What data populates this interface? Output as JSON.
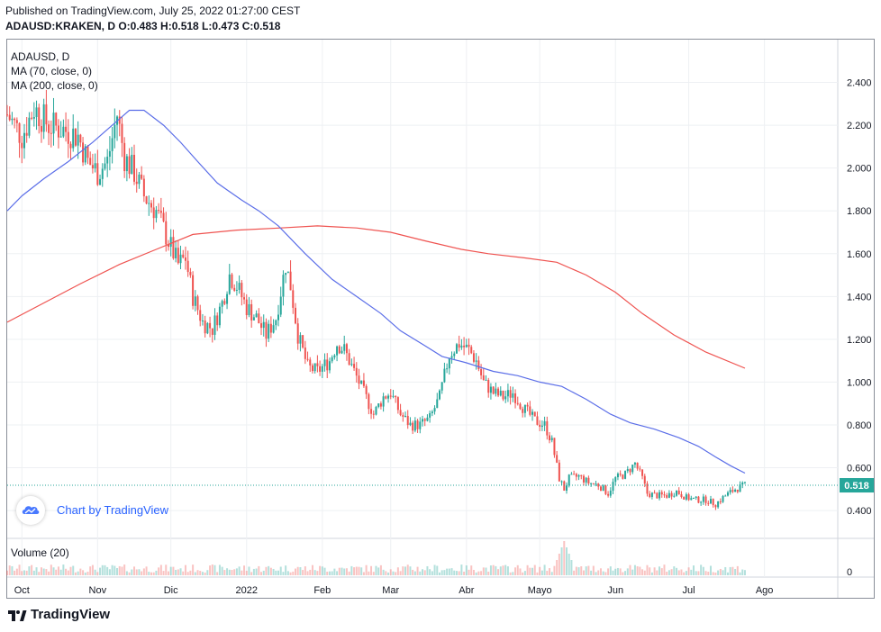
{
  "header": {
    "published": "Published on TradingView.com, July 25, 2022 01:27:00 CEST",
    "symbol_line": "ADAUSD:KRAKEN, D O:0.483 H:0.518 L:0.473 C:0.518"
  },
  "legend": {
    "symbol": "ADAUSD, D",
    "ma70": "MA (70, close, 0)",
    "ma200": "MA (200, close, 0)",
    "volume": "Volume (20)"
  },
  "badge": {
    "text": "Chart by TradingView"
  },
  "footer": {
    "brand": "TradingView"
  },
  "colors": {
    "up": "#26a69a",
    "down": "#ef5350",
    "ma70": "#5b6ee8",
    "ma200": "#ef5350",
    "last_price_bg": "#26a69a",
    "watermark": "#2962ff"
  },
  "chart_data": {
    "type": "candlestick",
    "title": "ADAUSD, D",
    "price_range": [
      0.27,
      2.6
    ],
    "price_ticks": [
      "2.400",
      "2.200",
      "2.000",
      "1.800",
      "1.600",
      "1.400",
      "1.200",
      "1.000",
      "0.800",
      "0.600",
      "0.400"
    ],
    "x_ticks": [
      {
        "label": "Oct",
        "date": "2021-10-01"
      },
      {
        "label": "Nov",
        "date": "2021-11-01"
      },
      {
        "label": "Dic",
        "date": "2021-12-01"
      },
      {
        "label": "2022",
        "date": "2022-01-01"
      },
      {
        "label": "Feb",
        "date": "2022-02-01"
      },
      {
        "label": "Mar",
        "date": "2022-03-01"
      },
      {
        "label": "Abr",
        "date": "2022-04-01"
      },
      {
        "label": "Mayo",
        "date": "2022-05-01"
      },
      {
        "label": "Jun",
        "date": "2022-06-01"
      },
      {
        "label": "Jul",
        "date": "2022-07-01"
      },
      {
        "label": "Ago",
        "date": "2022-08-01"
      }
    ],
    "x_range": [
      "2021-09-25",
      "2022-08-31"
    ],
    "last_price": "0.518",
    "volume_tick": "0",
    "close_points": [
      [
        "2021-09-25",
        2.25
      ],
      [
        "2021-10-01",
        2.15
      ],
      [
        "2021-10-06",
        2.28
      ],
      [
        "2021-10-12",
        2.2
      ],
      [
        "2021-10-18",
        2.18
      ],
      [
        "2021-10-24",
        2.15
      ],
      [
        "2021-10-28",
        2.03
      ],
      [
        "2021-11-01",
        1.98
      ],
      [
        "2021-11-05",
        2.03
      ],
      [
        "2021-11-09",
        2.25
      ],
      [
        "2021-11-12",
        2.05
      ],
      [
        "2021-11-16",
        1.98
      ],
      [
        "2021-11-20",
        1.87
      ],
      [
        "2021-11-25",
        1.8
      ],
      [
        "2021-12-01",
        1.63
      ],
      [
        "2021-12-04",
        1.55
      ],
      [
        "2021-12-07",
        1.58
      ],
      [
        "2021-12-10",
        1.4
      ],
      [
        "2021-12-14",
        1.28
      ],
      [
        "2021-12-18",
        1.25
      ],
      [
        "2021-12-22",
        1.37
      ],
      [
        "2021-12-25",
        1.5
      ],
      [
        "2021-12-28",
        1.45
      ],
      [
        "2022-01-01",
        1.35
      ],
      [
        "2022-01-05",
        1.3
      ],
      [
        "2022-01-09",
        1.22
      ],
      [
        "2022-01-13",
        1.3
      ],
      [
        "2022-01-17",
        1.55
      ],
      [
        "2022-01-19",
        1.45
      ],
      [
        "2022-01-22",
        1.22
      ],
      [
        "2022-01-26",
        1.07
      ],
      [
        "2022-01-30",
        1.05
      ],
      [
        "2022-02-04",
        1.1
      ],
      [
        "2022-02-07",
        1.18
      ],
      [
        "2022-02-10",
        1.15
      ],
      [
        "2022-02-14",
        1.05
      ],
      [
        "2022-02-18",
        0.95
      ],
      [
        "2022-02-22",
        0.85
      ],
      [
        "2022-02-26",
        0.93
      ],
      [
        "2022-03-01",
        0.95
      ],
      [
        "2022-03-05",
        0.85
      ],
      [
        "2022-03-09",
        0.8
      ],
      [
        "2022-03-13",
        0.8
      ],
      [
        "2022-03-17",
        0.83
      ],
      [
        "2022-03-21",
        0.93
      ],
      [
        "2022-03-25",
        1.13
      ],
      [
        "2022-03-29",
        1.18
      ],
      [
        "2022-04-02",
        1.15
      ],
      [
        "2022-04-05",
        1.1
      ],
      [
        "2022-04-08",
        1.0
      ],
      [
        "2022-04-12",
        0.95
      ],
      [
        "2022-04-16",
        0.93
      ],
      [
        "2022-04-20",
        0.95
      ],
      [
        "2022-04-25",
        0.87
      ],
      [
        "2022-04-29",
        0.82
      ],
      [
        "2022-05-03",
        0.8
      ],
      [
        "2022-05-06",
        0.72
      ],
      [
        "2022-05-09",
        0.55
      ],
      [
        "2022-05-11",
        0.5
      ],
      [
        "2022-05-13",
        0.55
      ],
      [
        "2022-05-17",
        0.56
      ],
      [
        "2022-05-21",
        0.53
      ],
      [
        "2022-05-25",
        0.52
      ],
      [
        "2022-05-29",
        0.48
      ],
      [
        "2022-06-01",
        0.55
      ],
      [
        "2022-06-05",
        0.57
      ],
      [
        "2022-06-09",
        0.62
      ],
      [
        "2022-06-12",
        0.55
      ],
      [
        "2022-06-14",
        0.48
      ],
      [
        "2022-06-18",
        0.47
      ],
      [
        "2022-06-22",
        0.47
      ],
      [
        "2022-06-26",
        0.49
      ],
      [
        "2022-06-30",
        0.46
      ],
      [
        "2022-07-04",
        0.45
      ],
      [
        "2022-07-08",
        0.45
      ],
      [
        "2022-07-12",
        0.43
      ],
      [
        "2022-07-16",
        0.47
      ],
      [
        "2022-07-20",
        0.5
      ],
      [
        "2022-07-24",
        0.518
      ]
    ],
    "ma70_points": [
      [
        "2021-09-25",
        1.8
      ],
      [
        "2021-10-01",
        1.87
      ],
      [
        "2021-10-10",
        1.95
      ],
      [
        "2021-10-20",
        2.03
      ],
      [
        "2021-10-30",
        2.12
      ],
      [
        "2021-11-07",
        2.2
      ],
      [
        "2021-11-14",
        2.27
      ],
      [
        "2021-11-20",
        2.27
      ],
      [
        "2021-11-28",
        2.2
      ],
      [
        "2021-12-05",
        2.12
      ],
      [
        "2021-12-12",
        2.03
      ],
      [
        "2021-12-20",
        1.93
      ],
      [
        "2021-12-30",
        1.85
      ],
      [
        "2022-01-06",
        1.8
      ],
      [
        "2022-01-14",
        1.73
      ],
      [
        "2022-01-25",
        1.6
      ],
      [
        "2022-02-05",
        1.48
      ],
      [
        "2022-02-15",
        1.4
      ],
      [
        "2022-02-25",
        1.32
      ],
      [
        "2022-03-05",
        1.24
      ],
      [
        "2022-03-15",
        1.17
      ],
      [
        "2022-03-22",
        1.12
      ],
      [
        "2022-04-01",
        1.09
      ],
      [
        "2022-04-12",
        1.05
      ],
      [
        "2022-04-22",
        1.03
      ],
      [
        "2022-05-01",
        1.0
      ],
      [
        "2022-05-10",
        0.98
      ],
      [
        "2022-05-20",
        0.92
      ],
      [
        "2022-05-30",
        0.85
      ],
      [
        "2022-06-07",
        0.81
      ],
      [
        "2022-06-17",
        0.78
      ],
      [
        "2022-06-27",
        0.74
      ],
      [
        "2022-07-05",
        0.7
      ],
      [
        "2022-07-12",
        0.65
      ],
      [
        "2022-07-18",
        0.61
      ],
      [
        "2022-07-24",
        0.575
      ]
    ],
    "ma200_points": [
      [
        "2021-09-25",
        1.28
      ],
      [
        "2021-10-10",
        1.37
      ],
      [
        "2021-10-25",
        1.46
      ],
      [
        "2021-11-10",
        1.55
      ],
      [
        "2021-11-25",
        1.62
      ],
      [
        "2021-12-10",
        1.69
      ],
      [
        "2021-12-28",
        1.71
      ],
      [
        "2022-01-15",
        1.72
      ],
      [
        "2022-01-30",
        1.73
      ],
      [
        "2022-02-15",
        1.72
      ],
      [
        "2022-03-01",
        1.7
      ],
      [
        "2022-03-15",
        1.66
      ],
      [
        "2022-03-30",
        1.62
      ],
      [
        "2022-04-10",
        1.6
      ],
      [
        "2022-04-25",
        1.58
      ],
      [
        "2022-05-08",
        1.56
      ],
      [
        "2022-05-20",
        1.5
      ],
      [
        "2022-06-01",
        1.42
      ],
      [
        "2022-06-12",
        1.32
      ],
      [
        "2022-06-25",
        1.22
      ],
      [
        "2022-07-08",
        1.14
      ],
      [
        "2022-07-24",
        1.065
      ]
    ],
    "volume_spike": {
      "date": "2022-05-11",
      "relative": 1.0
    },
    "grid": true,
    "legend_position": "top-left"
  }
}
